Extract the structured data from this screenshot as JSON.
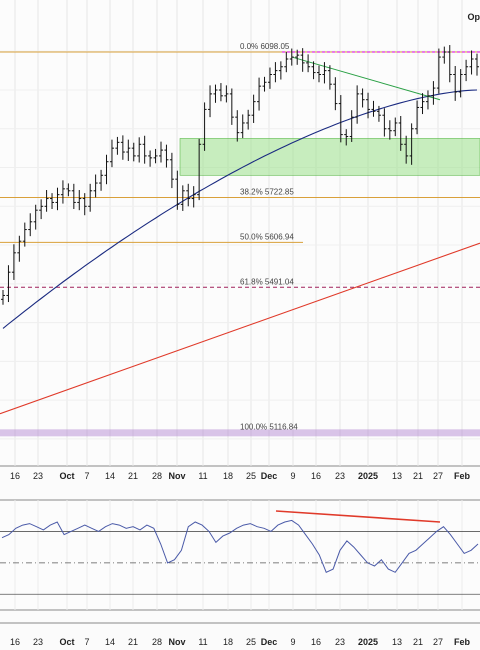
{
  "corner_label": "Op",
  "chart_data": [
    {
      "type": "ohlc-bar",
      "panel": "price",
      "x_axis": {
        "ticks": [
          "16",
          "23",
          "Oct",
          "7",
          "14",
          "21",
          "28",
          "Nov",
          "11",
          "18",
          "25",
          "Dec",
          "9",
          "16",
          "23",
          "2025",
          "13",
          "21",
          "27",
          "Feb"
        ],
        "bold_ticks": [
          "Oct",
          "Nov",
          "Dec",
          "2025",
          "Feb"
        ]
      },
      "ylim": [
        5030,
        6160
      ],
      "price_series": [
        5470,
        5530,
        5580,
        5610,
        5640,
        5660,
        5690,
        5700,
        5720,
        5710,
        5730,
        5745,
        5740,
        5710,
        5720,
        5700,
        5740,
        5760,
        5780,
        5815,
        5850,
        5865,
        5840,
        5850,
        5830,
        5860,
        5830,
        5825,
        5830,
        5845,
        5820,
        5770,
        5705,
        5740,
        5720,
        5730,
        5860,
        5950,
        5990,
        6000,
        5985,
        5990,
        5930,
        5890,
        5915,
        5935,
        5970,
        6010,
        6020,
        6040,
        6050,
        6060,
        6080,
        6085,
        6090,
        6070,
        6060,
        6045,
        6040,
        6050,
        6015,
        5965,
        5885,
        5880,
        5930,
        5990,
        5975,
        5950,
        5945,
        5935,
        5900,
        5895,
        5915,
        5860,
        5830,
        5900,
        5955,
        5970,
        5985,
        6005,
        6085,
        6098,
        6040,
        5995,
        6040,
        6060,
        6080,
        6060
      ],
      "moving_averages": [
        {
          "color": "#1a2a80",
          "values_start": 5385,
          "values_end": 6000
        },
        {
          "color": "#e03a2a",
          "values_start": 5165,
          "values_end": 5605
        }
      ],
      "horizontal_levels": [
        {
          "value": 6098.05,
          "label": "0.0% 6098.05",
          "color": "#d9a03a",
          "style": "solid"
        },
        {
          "value": 5722.85,
          "label": "38.2% 5722.85",
          "color": "#d9a03a",
          "style": "solid"
        },
        {
          "value": 5606.94,
          "label": "50.0% 5606.94",
          "color": "#d9a03a",
          "style": "solid"
        },
        {
          "value": 5491.04,
          "label": "61.8% 5491.04",
          "color": "#a0205a",
          "style": "dashed"
        },
        {
          "value": 5116.84,
          "label": "100.0% 5116.84",
          "color": "#b080d0",
          "style": "band"
        }
      ],
      "support_zone": {
        "low": 5780,
        "high": 5875,
        "color": "#9be08a"
      },
      "resistance_line_color": "#dd00dd",
      "trendline_color": "#2aa045"
    },
    {
      "type": "line",
      "panel": "rsi",
      "values": [
        66,
        68,
        72,
        74,
        75,
        73,
        71,
        74,
        76,
        68,
        70,
        72,
        74,
        72,
        70,
        73,
        75,
        74,
        72,
        73,
        71,
        74,
        72,
        62,
        50,
        52,
        58,
        73,
        76,
        74,
        70,
        63,
        67,
        69,
        72,
        74,
        75,
        73,
        72,
        70,
        74,
        76,
        77,
        74,
        68,
        62,
        55,
        44,
        46,
        58,
        64,
        60,
        55,
        50,
        48,
        52,
        46,
        44,
        50,
        56,
        58,
        62,
        66,
        70,
        73,
        68,
        62,
        56,
        58,
        62
      ],
      "ylim": [
        20,
        90
      ],
      "reference_levels": [
        70,
        50,
        30
      ],
      "divergence_line_color": "#e03a2a"
    }
  ]
}
